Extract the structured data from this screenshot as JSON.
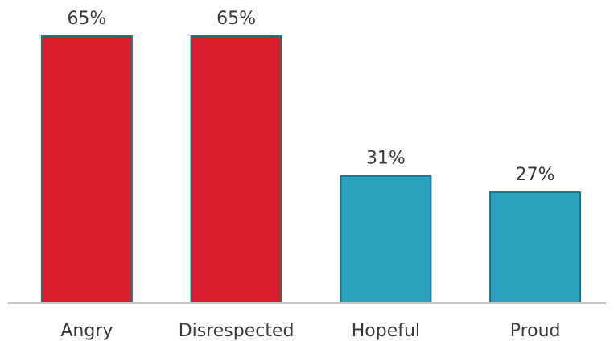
{
  "chart_data": {
    "type": "bar",
    "categories": [
      "Angry",
      "Disrespected",
      "Hopeful",
      "Proud"
    ],
    "values": [
      65,
      65,
      31,
      27
    ],
    "data_labels": [
      "65%",
      "65%",
      "31%",
      "27%"
    ],
    "value_unit": "%",
    "ylim": [
      0,
      65
    ],
    "grid": false,
    "legend": "none",
    "colors": [
      "#d91f2b",
      "#d91f2b",
      "#2ba3bf",
      "#2ba3bf"
    ],
    "bar_outline_color": "#1f6f8a",
    "axis_color": "#c8c8c8",
    "title": "",
    "xlabel": "",
    "ylabel": ""
  }
}
